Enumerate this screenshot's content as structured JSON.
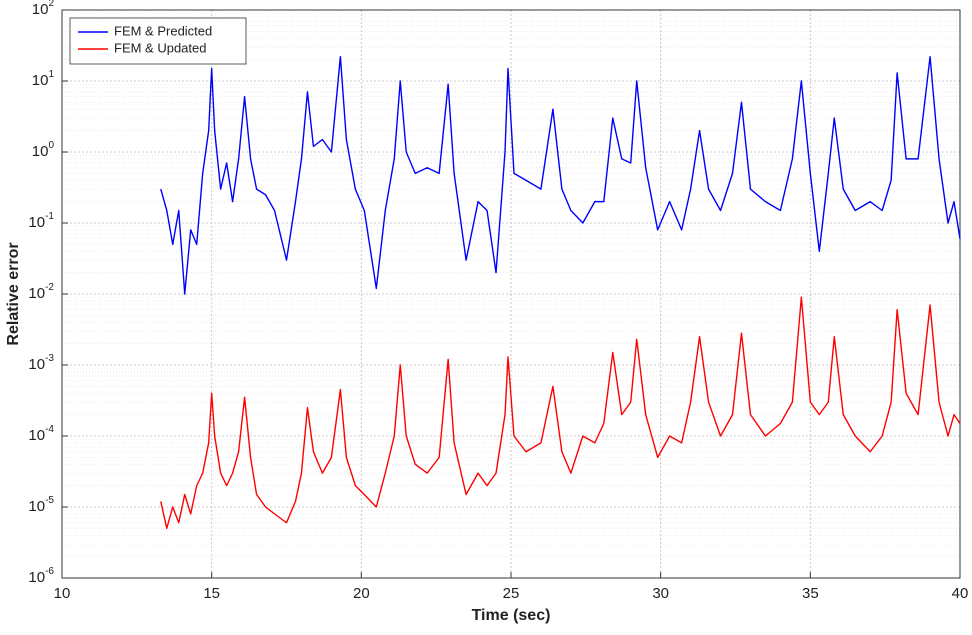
{
  "chart_data": {
    "type": "line",
    "xlabel": "Time (sec)",
    "ylabel": "Relative error",
    "xlim": [
      10,
      40
    ],
    "xticks": [
      10,
      15,
      20,
      25,
      30,
      35,
      40
    ],
    "ylim": [
      1e-06,
      100
    ],
    "yscale": "log",
    "yticks": [
      {
        "value": 1e-06,
        "label": "10",
        "exponent": "-6"
      },
      {
        "value": 1e-05,
        "label": "10",
        "exponent": "-5"
      },
      {
        "value": 0.0001,
        "label": "10",
        "exponent": "-4"
      },
      {
        "value": 0.001,
        "label": "10",
        "exponent": "-3"
      },
      {
        "value": 0.01,
        "label": "10",
        "exponent": "-2"
      },
      {
        "value": 0.1,
        "label": "10",
        "exponent": "-1"
      },
      {
        "value": 1,
        "label": "10",
        "exponent": "0"
      },
      {
        "value": 10,
        "label": "10",
        "exponent": "1"
      },
      {
        "value": 100,
        "label": "10",
        "exponent": "2"
      }
    ],
    "grid": true,
    "minor_grid": true,
    "legend": "upper left",
    "x": [
      13.3,
      13.5,
      13.7,
      13.9,
      14.1,
      14.3,
      14.5,
      14.7,
      14.9,
      15.0,
      15.1,
      15.3,
      15.5,
      15.7,
      15.9,
      16.1,
      16.3,
      16.5,
      16.8,
      17.1,
      17.5,
      17.8,
      18.0,
      18.2,
      18.4,
      18.7,
      19.0,
      19.3,
      19.5,
      19.8,
      20.1,
      20.5,
      20.8,
      21.1,
      21.3,
      21.5,
      21.8,
      22.2,
      22.6,
      22.9,
      23.1,
      23.5,
      23.9,
      24.2,
      24.5,
      24.8,
      24.9,
      25.1,
      25.5,
      26.0,
      26.4,
      26.7,
      27.0,
      27.4,
      27.8,
      28.1,
      28.4,
      28.7,
      29.0,
      29.2,
      29.5,
      29.9,
      30.3,
      30.7,
      31.0,
      31.3,
      31.6,
      32.0,
      32.4,
      32.7,
      33.0,
      33.5,
      34.0,
      34.4,
      34.7,
      35.0,
      35.3,
      35.6,
      35.8,
      36.1,
      36.5,
      37.0,
      37.4,
      37.7,
      37.9,
      38.2,
      38.6,
      39.0,
      39.3,
      39.6,
      39.8,
      40.0
    ],
    "series": [
      {
        "name": "FEM & Predicted",
        "color": "#0000ff",
        "values": [
          0.3,
          0.15,
          0.05,
          0.15,
          0.01,
          0.08,
          0.05,
          0.5,
          2,
          15,
          2,
          0.3,
          0.7,
          0.2,
          0.8,
          6,
          0.8,
          0.3,
          0.25,
          0.15,
          0.03,
          0.2,
          0.8,
          7,
          1.2,
          1.5,
          1,
          22,
          1.5,
          0.3,
          0.15,
          0.012,
          0.15,
          0.8,
          10,
          1,
          0.5,
          0.6,
          0.5,
          9,
          0.5,
          0.03,
          0.2,
          0.15,
          0.02,
          1,
          15,
          0.5,
          0.4,
          0.3,
          4,
          0.3,
          0.15,
          0.1,
          0.2,
          0.2,
          3,
          0.8,
          0.7,
          10,
          0.6,
          0.08,
          0.2,
          0.08,
          0.3,
          2,
          0.3,
          0.15,
          0.5,
          5,
          0.3,
          0.2,
          0.15,
          0.8,
          10,
          0.5,
          0.04,
          0.5,
          3,
          0.3,
          0.15,
          0.2,
          0.15,
          0.4,
          13,
          0.8,
          0.8,
          22,
          0.8,
          0.1,
          0.2,
          0.06
        ]
      },
      {
        "name": "FEM & Updated",
        "color": "#ff0000",
        "values": [
          1.2e-05,
          5e-06,
          1e-05,
          6e-06,
          1.5e-05,
          8e-06,
          2e-05,
          3e-05,
          8e-05,
          0.0004,
          0.0001,
          3e-05,
          2e-05,
          3e-05,
          6e-05,
          0.00035,
          5e-05,
          1.5e-05,
          1e-05,
          8e-06,
          6e-06,
          1.2e-05,
          3e-05,
          0.00025,
          6e-05,
          3e-05,
          5e-05,
          0.00045,
          5e-05,
          2e-05,
          1.5e-05,
          1e-05,
          3e-05,
          0.0001,
          0.001,
          0.0001,
          4e-05,
          3e-05,
          5e-05,
          0.0012,
          8e-05,
          1.5e-05,
          3e-05,
          2e-05,
          3e-05,
          0.0002,
          0.0013,
          0.0001,
          6e-05,
          8e-05,
          0.0005,
          6e-05,
          3e-05,
          0.0001,
          8e-05,
          0.00015,
          0.0015,
          0.0002,
          0.0003,
          0.0023,
          0.0002,
          5e-05,
          0.0001,
          8e-05,
          0.0003,
          0.0025,
          0.0003,
          0.0001,
          0.0002,
          0.0028,
          0.0002,
          0.0001,
          0.00015,
          0.0003,
          0.009,
          0.0003,
          0.0002,
          0.0003,
          0.0025,
          0.0002,
          0.0001,
          6e-05,
          0.0001,
          0.0003,
          0.006,
          0.0004,
          0.0002,
          0.007,
          0.0003,
          0.0001,
          0.0002,
          0.00015
        ]
      }
    ]
  }
}
